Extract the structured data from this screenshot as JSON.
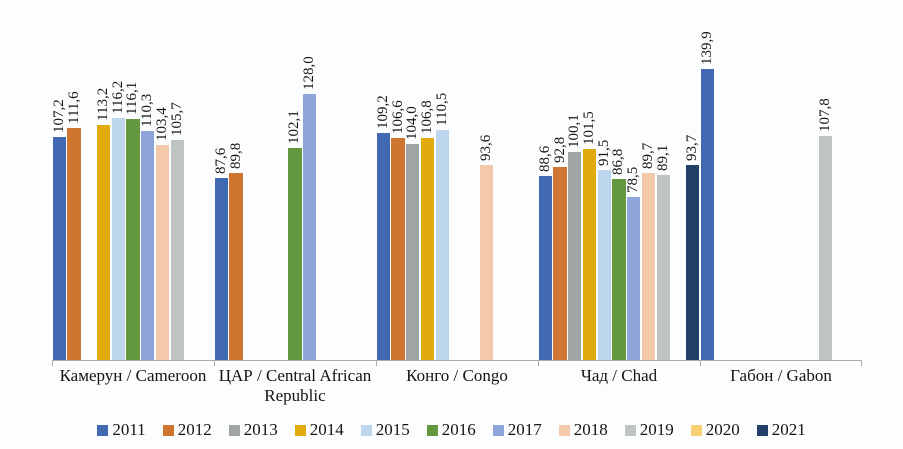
{
  "page": {
    "background": "#FCFDFE"
  },
  "chart_data": {
    "type": "bar",
    "title": "",
    "xlabel": "",
    "ylabel": "",
    "grid": false,
    "y_axis_visible": false,
    "legend_position": "bottom",
    "value_label_rotation": -90,
    "decimal_separator": ",",
    "value_label_decimals": 1,
    "ylim": [
      0,
      144
    ],
    "categories": [
      "Камерун / Cameroon",
      "ЦАР / Central African Republic",
      "Конго / Congo",
      "Чад / Chad",
      "Габон / Gabon"
    ],
    "series": [
      {
        "name": "2011",
        "color": "#4169B1",
        "values": [
          107.2,
          87.6,
          109.2,
          88.6,
          139.9
        ]
      },
      {
        "name": "2012",
        "color": "#D0752F",
        "values": [
          111.6,
          89.8,
          106.6,
          92.8,
          null
        ]
      },
      {
        "name": "2013",
        "color": "#A0A4A3",
        "values": [
          null,
          null,
          104.0,
          100.1,
          null
        ]
      },
      {
        "name": "2014",
        "color": "#E0AB0C",
        "values": [
          113.2,
          null,
          106.8,
          101.5,
          null
        ]
      },
      {
        "name": "2015",
        "color": "#BDD6EC",
        "values": [
          116.2,
          null,
          110.5,
          91.5,
          null
        ]
      },
      {
        "name": "2016",
        "color": "#63983F",
        "values": [
          116.1,
          102.1,
          null,
          86.8,
          null
        ]
      },
      {
        "name": "2017",
        "color": "#8DA5D8",
        "values": [
          110.3,
          128.0,
          null,
          78.5,
          null
        ]
      },
      {
        "name": "2018",
        "color": "#F4C9AB",
        "values": [
          103.4,
          null,
          93.6,
          89.7,
          null
        ]
      },
      {
        "name": "2019",
        "color": "#BFC3C2",
        "values": [
          105.7,
          null,
          null,
          89.1,
          107.8
        ]
      },
      {
        "name": "2020",
        "color": "#F8CF72",
        "values": [
          null,
          null,
          null,
          null,
          null
        ]
      },
      {
        "name": "2021",
        "color": "#22406A",
        "values": [
          null,
          null,
          null,
          93.7,
          null
        ]
      }
    ],
    "axis_color": "#A9ABAD",
    "text_color": "#141414"
  }
}
